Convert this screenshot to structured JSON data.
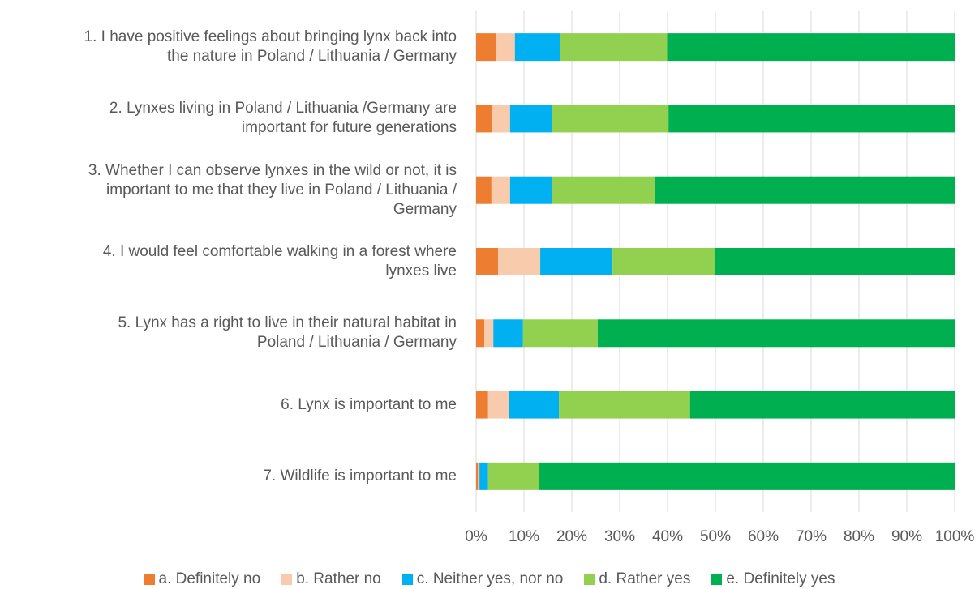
{
  "chart_data": {
    "type": "stacked_bar_horizontal",
    "categories": [
      "1. I have positive feelings about bringing lynx back into\nthe nature in Poland / Lithuania / Germany",
      "2. Lynxes living in Poland / Lithuania /Germany are\nimportant for future generations",
      "3. Whether I can observe lynxes in the wild or not, it is\nimportant to me that they live in Poland / Lithuania /\nGermany",
      "4. I would feel comfortable walking in a forest where\nlynxes live",
      "5. Lynx has a right to live in their natural habitat in\nPoland / Lithuania / Germany",
      "6. Lynx is important to me",
      "7. Wildlife is important to me"
    ],
    "series": [
      {
        "name": "a. Definitely no",
        "color": "#ED7D31",
        "values": [
          4.1,
          3.4,
          3.2,
          4.6,
          1.7,
          2.5,
          0.4
        ]
      },
      {
        "name": "b. Rather no",
        "color": "#F8CBAD",
        "values": [
          4.0,
          3.7,
          3.9,
          8.8,
          1.9,
          4.4,
          0.3
        ]
      },
      {
        "name": "c. Neither yes, nor no",
        "color": "#00B0F0",
        "values": [
          9.5,
          8.8,
          8.7,
          15.1,
          6.2,
          10.4,
          1.8
        ]
      },
      {
        "name": "d. Rather yes",
        "color": "#92D050",
        "values": [
          22.3,
          24.3,
          21.5,
          21.3,
          15.6,
          27.4,
          10.6
        ]
      },
      {
        "name": "e. Definitely yes",
        "color": "#00B050",
        "values": [
          60.2,
          59.8,
          62.7,
          50.2,
          74.6,
          55.3,
          86.9
        ]
      }
    ],
    "xlim": [
      0,
      100
    ],
    "xticks": [
      {
        "value": 0,
        "label": "0%"
      },
      {
        "value": 10,
        "label": "10%"
      },
      {
        "value": 20,
        "label": "20%"
      },
      {
        "value": 30,
        "label": "30%"
      },
      {
        "value": 40,
        "label": "40%"
      },
      {
        "value": 50,
        "label": "50%"
      },
      {
        "value": 60,
        "label": "60%"
      },
      {
        "value": 70,
        "label": "70%"
      },
      {
        "value": 80,
        "label": "80%"
      },
      {
        "value": 90,
        "label": "90%"
      },
      {
        "value": 100,
        "label": "100%"
      }
    ],
    "grid": true,
    "legend": "bottom"
  }
}
